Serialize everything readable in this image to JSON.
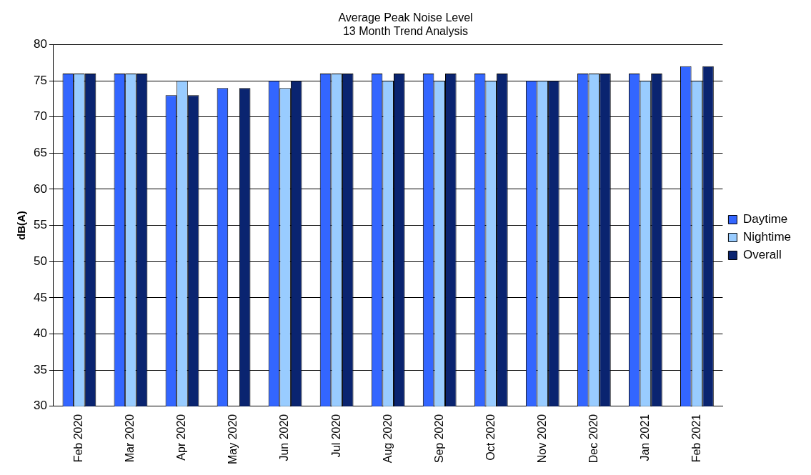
{
  "chart_data": {
    "type": "bar",
    "title": "Average Peak Noise Level",
    "subtitle": "13 Month Trend Analysis",
    "ylabel": "dB(A)",
    "categories": [
      "Feb 2020",
      "Mar 2020",
      "Apr 2020",
      "May 2020",
      "Jun 2020",
      "Jul 2020",
      "Aug 2020",
      "Sep 2020",
      "Oct 2020",
      "Nov 2020",
      "Dec 2020",
      "Jan 2021",
      "Feb 2021"
    ],
    "series": [
      {
        "name": "Daytime",
        "color": "#3366ff",
        "values": [
          76,
          76,
          73,
          74,
          75,
          76,
          76,
          76,
          76,
          75,
          76,
          76,
          77
        ]
      },
      {
        "name": "Nightime",
        "color": "#99ccff",
        "values": [
          76,
          76,
          75,
          null,
          74,
          76,
          75,
          75,
          75,
          75,
          76,
          75,
          75
        ]
      },
      {
        "name": "Overall",
        "color": "#0a2470",
        "values": [
          76,
          76,
          73,
          74,
          75,
          76,
          76,
          76,
          76,
          75,
          76,
          76,
          77
        ]
      }
    ],
    "ylim": [
      30,
      80
    ],
    "yticks": [
      30,
      35,
      40,
      45,
      50,
      55,
      60,
      65,
      70,
      75,
      80
    ],
    "grid": "y",
    "legend": "right"
  }
}
